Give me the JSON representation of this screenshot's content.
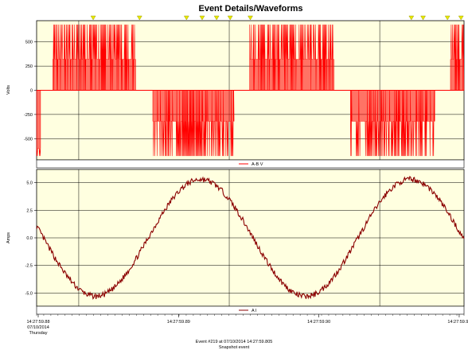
{
  "chart_data": [
    {
      "type": "line",
      "panel": "voltage",
      "title": "Event Details/Waveforms",
      "ylabel": "Volts",
      "ylim": [
        -720,
        720
      ],
      "y_ticks": [
        "500",
        "250",
        "0",
        "-250",
        "-500"
      ],
      "y_tick_values": [
        500,
        250,
        0,
        -250,
        -500
      ],
      "grid": true,
      "legend": "bottom-center",
      "series": [
        {
          "name": "A-B V",
          "color": "#ff0000",
          "style": "PWM switching waveform",
          "segments": [
            {
              "t_start": 0.0,
              "t_end": 0.013,
              "level": -600,
              "peak": -680
            },
            {
              "t_start": 0.054,
              "t_end": 0.329,
              "level": 320,
              "peak": 680
            },
            {
              "t_start": 0.386,
              "t_end": 0.655,
              "level": -320,
              "peak": -680
            },
            {
              "t_start": 0.708,
              "t_end": 0.988,
              "level": 320,
              "peak": 680
            },
            {
              "t_start": 1.043,
              "t_end": 1.323,
              "level": -320,
              "peak": -680
            },
            {
              "t_start": 1.375,
              "t_end": 1.42,
              "level": 320,
              "peak": 680
            }
          ]
        }
      ],
      "markers_count": 11,
      "marker_positions": [
        0.188,
        0.342,
        0.498,
        0.55,
        0.598,
        0.643,
        0.71,
        1.245,
        1.284,
        1.365,
        1.41
      ],
      "marker_color": "#e8e800"
    },
    {
      "type": "line",
      "panel": "current",
      "ylabel": "Amps",
      "ylim": [
        -6.2,
        6.2
      ],
      "y_ticks": [
        "5.0",
        "2.5",
        "0.0",
        "-2.5",
        "-5.0"
      ],
      "y_tick_values": [
        5.0,
        2.5,
        0.0,
        -2.5,
        -5.0
      ],
      "grid": true,
      "legend": "bottom-center",
      "series": [
        {
          "name": "A I",
          "color": "#8b0000",
          "shape": "sine",
          "amplitude": 5.3,
          "period_units": 0.697,
          "phase_peak_at": 0.545,
          "points": [
            [
              0.0,
              4.9
            ],
            [
              0.05,
              3.6
            ],
            [
              0.1,
              1.6
            ],
            [
              0.15,
              -1.3
            ],
            [
              0.2,
              -3.6
            ],
            [
              0.25,
              -4.8
            ],
            [
              0.3,
              -5.1
            ],
            [
              0.35,
              -4.6
            ],
            [
              0.4,
              -3.4
            ],
            [
              0.45,
              -0.6
            ],
            [
              0.5,
              2.8
            ],
            [
              0.55,
              5.2
            ],
            [
              0.6,
              5.4
            ],
            [
              0.65,
              4.6
            ],
            [
              0.7,
              2.9
            ],
            [
              0.75,
              0.7
            ],
            [
              0.8,
              -2.0
            ],
            [
              0.85,
              -4.3
            ],
            [
              0.9,
              -5.2
            ],
            [
              0.95,
              -5.1
            ],
            [
              1.0,
              -3.7
            ],
            [
              1.05,
              -1.3
            ],
            [
              1.1,
              1.8
            ],
            [
              1.15,
              4.2
            ],
            [
              1.2,
              5.4
            ],
            [
              1.25,
              5.3
            ],
            [
              1.3,
              4.3
            ],
            [
              1.35,
              2.6
            ],
            [
              1.42,
              0.6
            ]
          ]
        }
      ]
    }
  ],
  "x_axis": {
    "tick_labels": [
      {
        "time": "14:27:59.88",
        "date": "07/10/2014",
        "day": "Thursday",
        "pos": 0.0
      },
      {
        "time": "14:27:59.89",
        "pos": 0.5
      },
      {
        "time": "14:27:59.90",
        "pos": 1.0
      },
      {
        "time": "14:27:59.92",
        "pos": 1.5
      }
    ],
    "gridlines": [
      0.14,
      0.64,
      1.14
    ]
  },
  "footer": {
    "line1": "Event #219 at 07/10/2014 14:27:59.805",
    "line2": "Snapshot event"
  },
  "colors": {
    "plot_bg": "#ffffe0",
    "frame": "#000000",
    "grid": "#000000"
  }
}
